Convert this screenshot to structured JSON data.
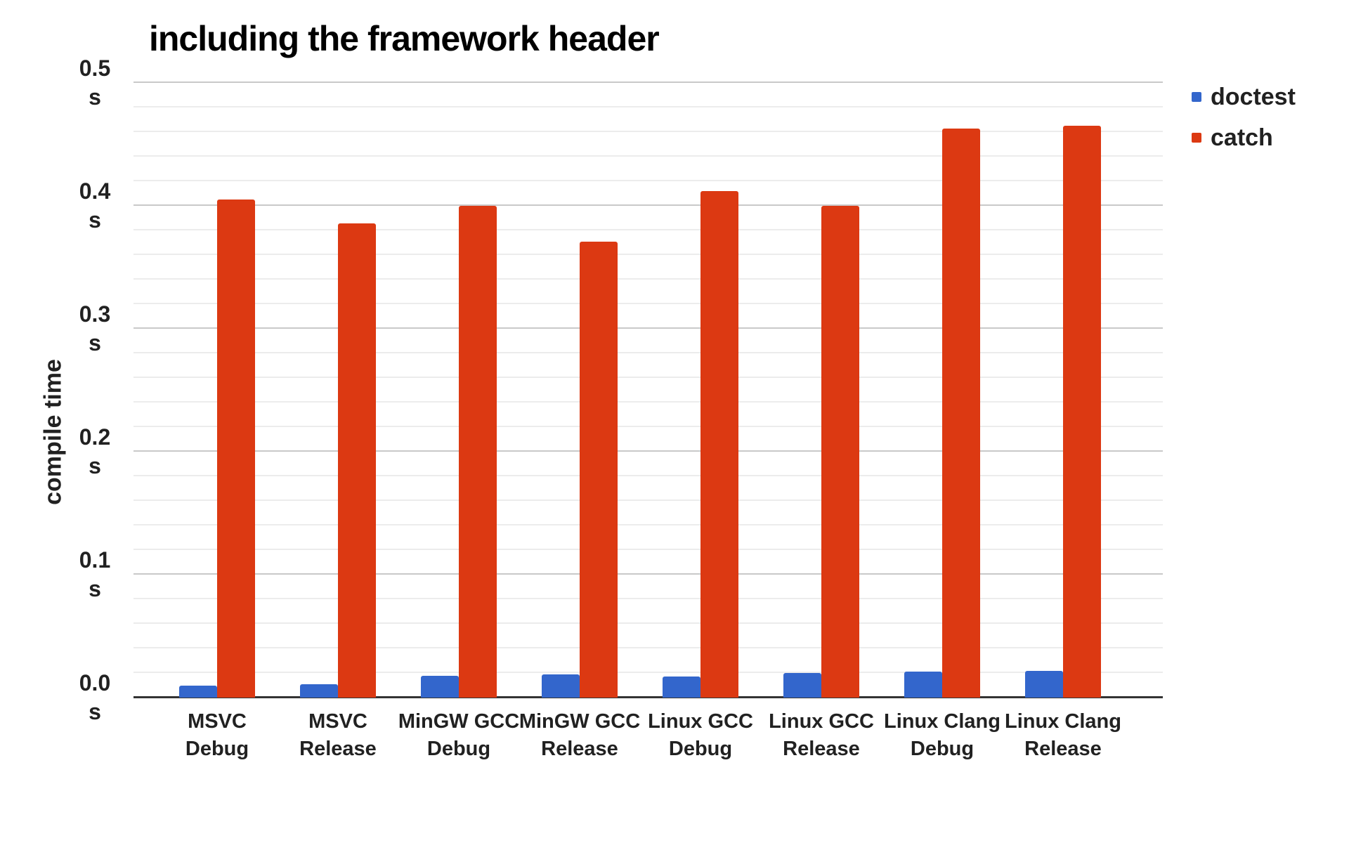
{
  "title": "including the framework header",
  "y_axis": {
    "title": "compile time",
    "unit": "s",
    "tick_labels": [
      "0.0",
      "0.1",
      "0.2",
      "0.3",
      "0.4",
      "0.5"
    ]
  },
  "legend": {
    "position": "right",
    "items": [
      {
        "label": "doctest",
        "color": "#3366cc"
      },
      {
        "label": "catch",
        "color": "#dc3912"
      }
    ]
  },
  "colors": {
    "doctest_blue": "#3366cc",
    "catch_red": "#dc3912",
    "text_dark": "#212121",
    "major_gridline": "#c9c9c9",
    "minor_gridline": "#ececec",
    "baseline": "#333333"
  },
  "chart_data": {
    "type": "bar",
    "title": "including the framework header",
    "xlabel": "",
    "ylabel": "compile time",
    "unit": "s",
    "ylim": [
      0,
      0.5
    ],
    "yticks": [
      0.0,
      0.1,
      0.2,
      0.3,
      0.4,
      0.5
    ],
    "minor_gridline_step": 0.02,
    "grid": true,
    "legend_position": "right",
    "categories": [
      "MSVC Debug",
      "MSVC Release",
      "MinGW GCC Debug",
      "MinGW GCC Release",
      "Linux GCC Debug",
      "Linux GCC Release",
      "Linux Clang Debug",
      "Linux Clang Release"
    ],
    "category_lines": [
      [
        "MSVC",
        "Debug"
      ],
      [
        "MSVC",
        "Release"
      ],
      [
        "MinGW GCC",
        "Debug"
      ],
      [
        "MinGW GCC",
        "Release"
      ],
      [
        "Linux GCC",
        "Debug"
      ],
      [
        "Linux GCC",
        "Release"
      ],
      [
        "Linux Clang",
        "Debug"
      ],
      [
        "Linux Clang",
        "Release"
      ]
    ],
    "series": [
      {
        "name": "doctest",
        "color": "#3366cc",
        "values": [
          0.01,
          0.011,
          0.018,
          0.019,
          0.017,
          0.02,
          0.021,
          0.022
        ]
      },
      {
        "name": "catch",
        "color": "#dc3912",
        "values": [
          0.405,
          0.386,
          0.4,
          0.371,
          0.412,
          0.4,
          0.463,
          0.465
        ]
      }
    ]
  }
}
